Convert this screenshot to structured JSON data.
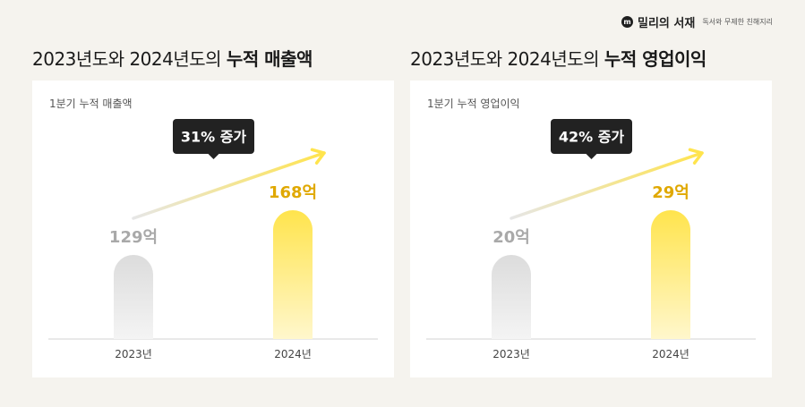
{
  "brand": {
    "logo": "m",
    "name": "밀리의 서재",
    "tagline": "독서와 무제한 친해지리"
  },
  "colors": {
    "bar_2023": "#dcdcdc",
    "bar_2024": "#ffe44d",
    "label_2023": "#a9a9a9",
    "label_2024": "#e0a800",
    "callout_bg": "#222222",
    "arrow_end": "#ffe44d"
  },
  "chart_data": [
    {
      "type": "bar",
      "title_prefix": "2023년도와 2024년도의 ",
      "title_bold": "누적 매출액",
      "subtitle": "1분기 누적 매출액",
      "unit": "억",
      "categories": [
        "2023년",
        "2024년"
      ],
      "values": [
        129,
        168
      ],
      "data_labels": [
        "129억",
        "168억"
      ],
      "callout": "31% 증가"
    },
    {
      "type": "bar",
      "title_prefix": "2023년도와 2024년도의 ",
      "title_bold": "누적 영업이익",
      "subtitle": "1분기 누적 영업이익",
      "unit": "억",
      "categories": [
        "2023년",
        "2024년"
      ],
      "values": [
        20,
        29
      ],
      "data_labels": [
        "20억",
        "29억"
      ],
      "callout": "42% 증가"
    }
  ]
}
